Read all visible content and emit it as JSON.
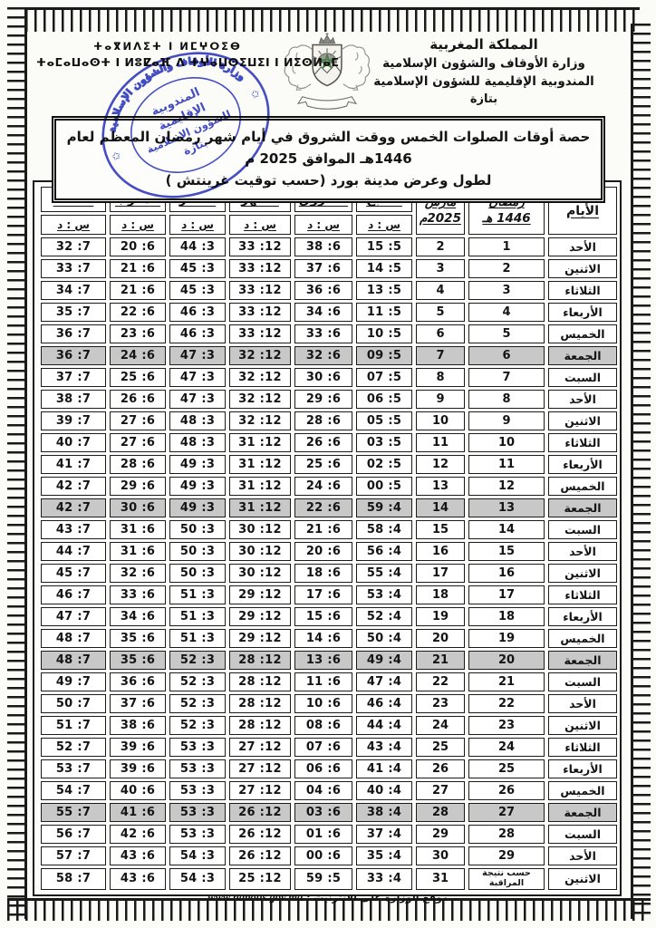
{
  "header": {
    "kingdom": "المملكة المغربية",
    "ministry": "وزارة الأوقاف والشؤون الإسلامية",
    "delegation": "المندوبية الإقليمية للشؤون الإسلامية",
    "city": "بتازة",
    "tifinagh_line1": "ⵜⴰⴳⵍⴷⵉⵜ ⵏ ⵍⵎⵖⵔⵉⴱ",
    "tifinagh_line2": "ⵜⴰⵎⴰⵡⴰⵙⵜ ⵏ ⵍⵓⵇⴰⴼ ⴷ ⵜⵖⴰⵡⵙⵉⵡⵉⵏ ⵏ ⵍⵉⵙⵍⴰⵎ"
  },
  "stamp": {
    "ring_text": "وزارة الأوقاف والشؤون الإسلامية",
    "center_line1": "المندوبية",
    "center_line2": "الإقليمية",
    "center_line3": "للشؤون الإسلامية",
    "center_line4": "بتازة",
    "star": "✩",
    "color": "#2a34bf"
  },
  "title": {
    "line1": "حصة أوقات الصلوات الخمس ووقت الشروق في أيام شهر رمضان المعظم لعام 1446هـ الموافق 2025 م",
    "line2": "لطول وعرض  مدينة بورد  (حسب توقيت غرينتش )"
  },
  "table": {
    "highlight_color": "#c8c8c8",
    "col_days": "الأيام",
    "col_ramadan_line1": "رمضان",
    "col_ramadan_line2": "1446 هـ",
    "col_march_line1": "مارس",
    "col_march_line2": "2025م",
    "time_cols": [
      "الصبح",
      "الشروق",
      "الظهر",
      "العصر",
      "المغرب",
      "العشاء"
    ],
    "time_col_keys": [
      "subh",
      "shuruq",
      "dhuhr",
      "asr",
      "maghrib",
      "isha"
    ],
    "unit_label": "س : د",
    "rows": [
      {
        "day": "الأحد",
        "ramadan": "1",
        "march": "2",
        "fri": false,
        "times": [
          "15 :5",
          "38 :6",
          "33 :12",
          "44 :3",
          "20 :6",
          "32 :7"
        ]
      },
      {
        "day": "الاثنين",
        "ramadan": "2",
        "march": "3",
        "fri": false,
        "times": [
          "14 :5",
          "37 :6",
          "33 :12",
          "45 :3",
          "21 :6",
          "33 :7"
        ]
      },
      {
        "day": "الثلاثاء",
        "ramadan": "3",
        "march": "4",
        "fri": false,
        "times": [
          "13 :5",
          "36 :6",
          "33 :12",
          "45 :3",
          "21 :6",
          "34 :7"
        ]
      },
      {
        "day": "الأربعاء",
        "ramadan": "4",
        "march": "5",
        "fri": false,
        "times": [
          "11 :5",
          "34 :6",
          "33 :12",
          "46 :3",
          "22 :6",
          "35 :7"
        ]
      },
      {
        "day": "الخميس",
        "ramadan": "5",
        "march": "6",
        "fri": false,
        "times": [
          "10 :5",
          "33 :6",
          "33 :12",
          "46 :3",
          "23 :6",
          "36 :7"
        ]
      },
      {
        "day": "الجمعة",
        "ramadan": "6",
        "march": "7",
        "fri": true,
        "times": [
          "09 :5",
          "32 :6",
          "32 :12",
          "47 :3",
          "24 :6",
          "36 :7"
        ]
      },
      {
        "day": "السبت",
        "ramadan": "7",
        "march": "8",
        "fri": false,
        "times": [
          "07 :5",
          "30 :6",
          "32 :12",
          "47 :3",
          "25 :6",
          "37 :7"
        ]
      },
      {
        "day": "الأحد",
        "ramadan": "8",
        "march": "9",
        "fri": false,
        "times": [
          "06 :5",
          "29 :6",
          "32 :12",
          "47 :3",
          "26 :6",
          "38 :7"
        ]
      },
      {
        "day": "الاثنين",
        "ramadan": "9",
        "march": "10",
        "fri": false,
        "times": [
          "05 :5",
          "28 :6",
          "32 :12",
          "48 :3",
          "27 :6",
          "39 :7"
        ]
      },
      {
        "day": "الثلاثاء",
        "ramadan": "10",
        "march": "11",
        "fri": false,
        "times": [
          "03 :5",
          "26 :6",
          "31 :12",
          "48 :3",
          "27 :6",
          "40 :7"
        ]
      },
      {
        "day": "الأربعاء",
        "ramadan": "11",
        "march": "12",
        "fri": false,
        "times": [
          "02 :5",
          "25 :6",
          "31 :12",
          "49 :3",
          "28 :6",
          "41 :7"
        ]
      },
      {
        "day": "الخميس",
        "ramadan": "12",
        "march": "13",
        "fri": false,
        "times": [
          "00 :5",
          "24 :6",
          "31 :12",
          "49 :3",
          "29 :6",
          "42 :7"
        ]
      },
      {
        "day": "الجمعة",
        "ramadan": "13",
        "march": "14",
        "fri": true,
        "times": [
          "59 :4",
          "22 :6",
          "31 :12",
          "49 :3",
          "30 :6",
          "42 :7"
        ]
      },
      {
        "day": "السبت",
        "ramadan": "14",
        "march": "15",
        "fri": false,
        "times": [
          "58 :4",
          "21 :6",
          "30 :12",
          "50 :3",
          "31 :6",
          "43 :7"
        ]
      },
      {
        "day": "الأحد",
        "ramadan": "15",
        "march": "16",
        "fri": false,
        "times": [
          "56 :4",
          "20 :6",
          "30 :12",
          "50 :3",
          "31 :6",
          "44 :7"
        ]
      },
      {
        "day": "الاثنين",
        "ramadan": "16",
        "march": "17",
        "fri": false,
        "times": [
          "55 :4",
          "18 :6",
          "30 :12",
          "50 :3",
          "32 :6",
          "45 :7"
        ]
      },
      {
        "day": "الثلاثاء",
        "ramadan": "17",
        "march": "18",
        "fri": false,
        "times": [
          "53 :4",
          "17 :6",
          "29 :12",
          "51 :3",
          "33 :6",
          "46 :7"
        ]
      },
      {
        "day": "الأربعاء",
        "ramadan": "18",
        "march": "19",
        "fri": false,
        "times": [
          "52 :4",
          "15 :6",
          "29 :12",
          "51 :3",
          "34 :6",
          "47 :7"
        ]
      },
      {
        "day": "الخميس",
        "ramadan": "19",
        "march": "20",
        "fri": false,
        "times": [
          "50 :4",
          "14 :6",
          "29 :12",
          "51 :3",
          "35 :6",
          "48 :7"
        ]
      },
      {
        "day": "الجمعة",
        "ramadan": "20",
        "march": "21",
        "fri": true,
        "times": [
          "49 :4",
          "13 :6",
          "28 :12",
          "52 :3",
          "35 :6",
          "48 :7"
        ]
      },
      {
        "day": "السبت",
        "ramadan": "21",
        "march": "22",
        "fri": false,
        "times": [
          "47 :4",
          "11 :6",
          "28 :12",
          "52 :3",
          "36 :6",
          "49 :7"
        ]
      },
      {
        "day": "الأحد",
        "ramadan": "22",
        "march": "23",
        "fri": false,
        "times": [
          "46 :4",
          "10 :6",
          "28 :12",
          "52 :3",
          "37 :6",
          "50 :7"
        ]
      },
      {
        "day": "الاثنين",
        "ramadan": "23",
        "march": "24",
        "fri": false,
        "times": [
          "44 :4",
          "08 :6",
          "28 :12",
          "52 :3",
          "38 :6",
          "51 :7"
        ]
      },
      {
        "day": "الثلاثاء",
        "ramadan": "24",
        "march": "25",
        "fri": false,
        "times": [
          "43 :4",
          "07 :6",
          "27 :12",
          "53 :3",
          "39 :6",
          "52 :7"
        ]
      },
      {
        "day": "الأربعاء",
        "ramadan": "25",
        "march": "26",
        "fri": false,
        "times": [
          "41 :4",
          "06 :6",
          "27 :12",
          "53 :3",
          "39 :6",
          "53 :7"
        ]
      },
      {
        "day": "الخميس",
        "ramadan": "26",
        "march": "27",
        "fri": false,
        "times": [
          "40 :4",
          "04 :6",
          "27 :12",
          "53 :3",
          "40 :6",
          "54 :7"
        ]
      },
      {
        "day": "الجمعة",
        "ramadan": "27",
        "march": "28",
        "fri": true,
        "times": [
          "38 :4",
          "03 :6",
          "26 :12",
          "53 :3",
          "41 :6",
          "55 :7"
        ]
      },
      {
        "day": "السبت",
        "ramadan": "28",
        "march": "29",
        "fri": false,
        "times": [
          "37 :4",
          "01 :6",
          "26 :12",
          "53 :3",
          "42 :6",
          "56 :7"
        ]
      },
      {
        "day": "الأحد",
        "ramadan": "29",
        "march": "30",
        "fri": false,
        "times": [
          "35 :4",
          "00 :6",
          "26 :12",
          "54 :3",
          "43 :6",
          "57 :7"
        ]
      },
      {
        "day": "الاثنين",
        "ramadan": "حسب نتيجة المراقبة",
        "march": "31",
        "fri": false,
        "times": [
          "33 :4",
          "59 :5",
          "25 :12",
          "54 :3",
          "43 :6",
          "58 :7"
        ]
      }
    ]
  },
  "footer": {
    "address": "1 تجزئة الصديقي (قرب مقر القيادة الجهوية للدرك الملكي ) – تازة (المغرب) - الهاتف:  05.35.67.12.29  الفاكس 05.35.28.01.90",
    "website_label": "موقع الوزارة على الأنترنيت : ",
    "website_url": "www.habous.gov.ma"
  }
}
